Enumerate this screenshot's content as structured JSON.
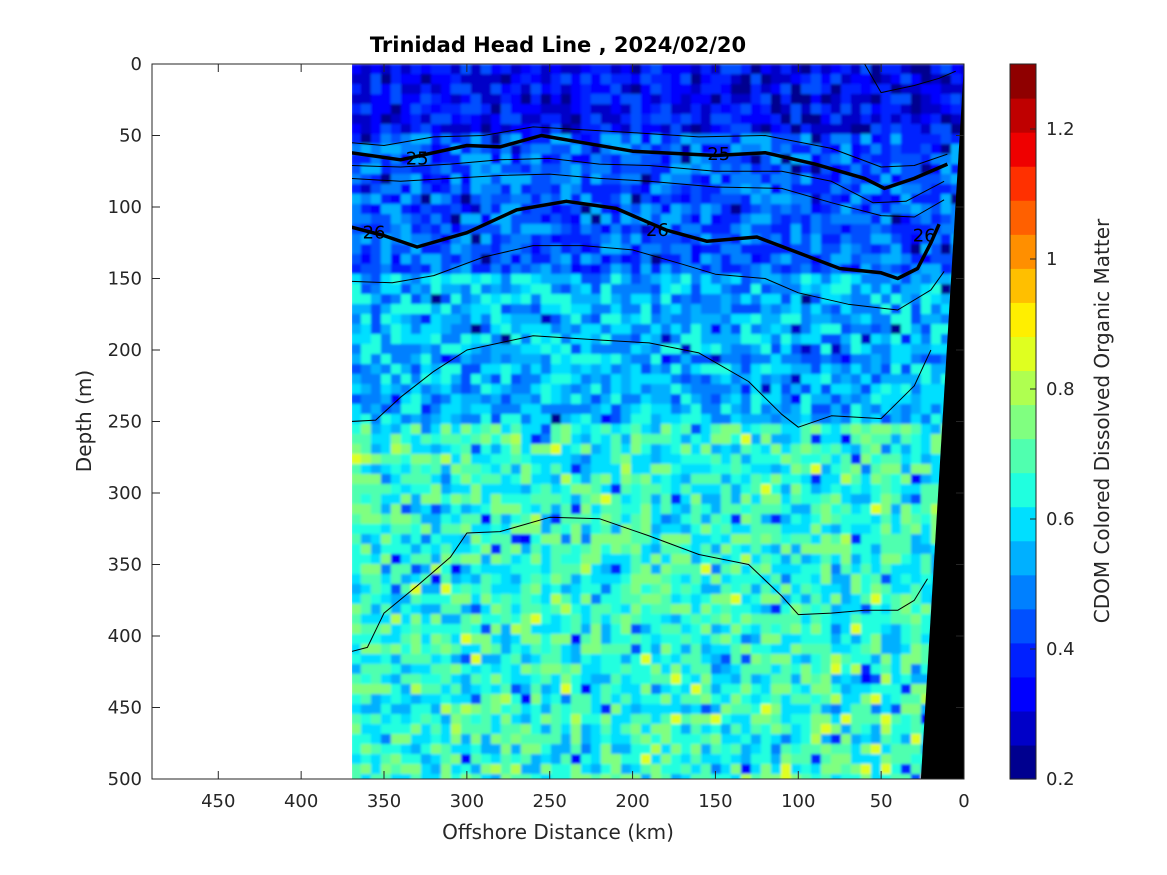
{
  "chart_data": {
    "type": "heatmap",
    "title": "Trinidad Head Line , 2024/02/20",
    "xlabel": "Offshore Distance (km)",
    "ylabel": "Depth (m)",
    "colorbar_label": "CDOM Colored Dissolved Organic Matter",
    "xlim": [
      490,
      0
    ],
    "ylim": [
      500,
      0
    ],
    "x_reversed": true,
    "y_reversed": true,
    "x_ticks": [
      450,
      400,
      350,
      300,
      250,
      200,
      150,
      100,
      50,
      0
    ],
    "y_ticks": [
      0,
      50,
      100,
      150,
      200,
      250,
      300,
      350,
      400,
      450,
      500
    ],
    "colorbar_range": [
      0.2,
      1.3
    ],
    "colorbar_ticks": [
      0.2,
      0.4,
      0.6,
      0.8,
      1,
      1.2
    ],
    "colormap": [
      "#00008f",
      "#0000c8",
      "#0000ff",
      "#0020ff",
      "#0050ff",
      "#0080ff",
      "#00b0ff",
      "#00dfff",
      "#20ffdf",
      "#50ffaf",
      "#80ff80",
      "#afff50",
      "#dfff20",
      "#ffef00",
      "#ffbf00",
      "#ff8f00",
      "#ff6000",
      "#ff3000",
      "#ef0000",
      "#bf0000",
      "#8f0000"
    ],
    "data_extent_x": [
      370,
      0
    ],
    "bottom_topography_km": [
      {
        "depth": 0,
        "distance": 0
      },
      {
        "depth": 500,
        "distance": 26
      }
    ],
    "cdom_field": [
      {
        "depth_range": [
          0,
          50
        ],
        "typical_value": 0.35
      },
      {
        "depth_range": [
          50,
          150
        ],
        "typical_value": 0.45
      },
      {
        "depth_range": [
          150,
          250
        ],
        "typical_value": 0.55
      },
      {
        "depth_range": [
          250,
          500
        ],
        "typical_value": 0.65
      }
    ],
    "density_contours": [
      {
        "label": "25",
        "bold": true,
        "points": [
          [
            370,
            62
          ],
          [
            340,
            67
          ],
          [
            320,
            62
          ],
          [
            300,
            57
          ],
          [
            280,
            58
          ],
          [
            255,
            50
          ],
          [
            230,
            55
          ],
          [
            200,
            61
          ],
          [
            150,
            64
          ],
          [
            120,
            62
          ],
          [
            90,
            70
          ],
          [
            60,
            80
          ],
          [
            48,
            87
          ],
          [
            30,
            80
          ],
          [
            10,
            70
          ]
        ]
      },
      {
        "label": "26",
        "bold": true,
        "points": [
          [
            370,
            114
          ],
          [
            350,
            120
          ],
          [
            330,
            128
          ],
          [
            300,
            118
          ],
          [
            270,
            102
          ],
          [
            240,
            96
          ],
          [
            210,
            101
          ],
          [
            180,
            116
          ],
          [
            155,
            124
          ],
          [
            125,
            121
          ],
          [
            100,
            132
          ],
          [
            75,
            143
          ],
          [
            50,
            146
          ],
          [
            40,
            150
          ],
          [
            28,
            143
          ],
          [
            20,
            125
          ],
          [
            15,
            112
          ]
        ]
      },
      {
        "label": "",
        "bold": false,
        "points": [
          [
            370,
            55
          ],
          [
            350,
            57
          ],
          [
            320,
            51
          ],
          [
            290,
            50
          ],
          [
            260,
            44
          ],
          [
            230,
            46
          ],
          [
            200,
            48
          ],
          [
            160,
            51
          ],
          [
            120,
            50
          ],
          [
            80,
            59
          ],
          [
            50,
            72
          ],
          [
            30,
            71
          ],
          [
            10,
            63
          ]
        ]
      },
      {
        "label": "",
        "bold": false,
        "points": [
          [
            370,
            71
          ],
          [
            340,
            72
          ],
          [
            310,
            70
          ],
          [
            280,
            67
          ],
          [
            250,
            66
          ],
          [
            220,
            70
          ],
          [
            190,
            71
          ],
          [
            150,
            75
          ],
          [
            110,
            75
          ],
          [
            80,
            82
          ],
          [
            55,
            97
          ],
          [
            35,
            96
          ],
          [
            12,
            82
          ]
        ]
      },
      {
        "label": "",
        "bold": false,
        "points": [
          [
            370,
            80
          ],
          [
            340,
            82
          ],
          [
            310,
            80
          ],
          [
            280,
            78
          ],
          [
            250,
            77
          ],
          [
            220,
            80
          ],
          [
            190,
            82
          ],
          [
            150,
            86
          ],
          [
            110,
            87
          ],
          [
            80,
            97
          ],
          [
            50,
            106
          ],
          [
            30,
            107
          ],
          [
            12,
            95
          ]
        ]
      },
      {
        "label": "",
        "bold": false,
        "points": [
          [
            370,
            152
          ],
          [
            345,
            153
          ],
          [
            320,
            148
          ],
          [
            290,
            135
          ],
          [
            260,
            127
          ],
          [
            230,
            127
          ],
          [
            200,
            130
          ],
          [
            170,
            140
          ],
          [
            150,
            147
          ],
          [
            120,
            150
          ],
          [
            100,
            160
          ],
          [
            70,
            168
          ],
          [
            40,
            172
          ],
          [
            20,
            158
          ],
          [
            12,
            145
          ]
        ]
      },
      {
        "label": "",
        "bold": false,
        "points": [
          [
            370,
            250
          ],
          [
            355,
            249
          ],
          [
            340,
            233
          ],
          [
            320,
            215
          ],
          [
            300,
            200
          ],
          [
            260,
            190
          ],
          [
            220,
            193
          ],
          [
            190,
            195
          ],
          [
            160,
            202
          ],
          [
            130,
            222
          ],
          [
            110,
            245
          ],
          [
            100,
            254
          ],
          [
            80,
            246
          ],
          [
            50,
            248
          ],
          [
            30,
            225
          ],
          [
            20,
            200
          ]
        ]
      },
      {
        "label": "",
        "bold": false,
        "points": [
          [
            370,
            411
          ],
          [
            360,
            408
          ],
          [
            350,
            384
          ],
          [
            330,
            365
          ],
          [
            310,
            345
          ],
          [
            300,
            328
          ],
          [
            280,
            327
          ],
          [
            250,
            317
          ],
          [
            220,
            318
          ],
          [
            190,
            330
          ],
          [
            160,
            343
          ],
          [
            130,
            350
          ],
          [
            110,
            372
          ],
          [
            100,
            385
          ],
          [
            80,
            384
          ],
          [
            60,
            382
          ],
          [
            40,
            382
          ],
          [
            30,
            375
          ],
          [
            22,
            360
          ]
        ]
      },
      {
        "label": "",
        "bold": false,
        "points": [
          [
            60,
            0
          ],
          [
            50,
            20
          ],
          [
            30,
            15
          ],
          [
            15,
            10
          ],
          [
            5,
            5
          ]
        ]
      }
    ],
    "contour_labels": [
      {
        "text": "25",
        "x": 330,
        "y": 66
      },
      {
        "text": "25",
        "x": 148,
        "y": 63
      },
      {
        "text": "26",
        "x": 356,
        "y": 118
      },
      {
        "text": "26",
        "x": 185,
        "y": 116
      },
      {
        "text": "26",
        "x": 24,
        "y": 120
      }
    ],
    "grid": false,
    "legend": "colorbar-right"
  }
}
